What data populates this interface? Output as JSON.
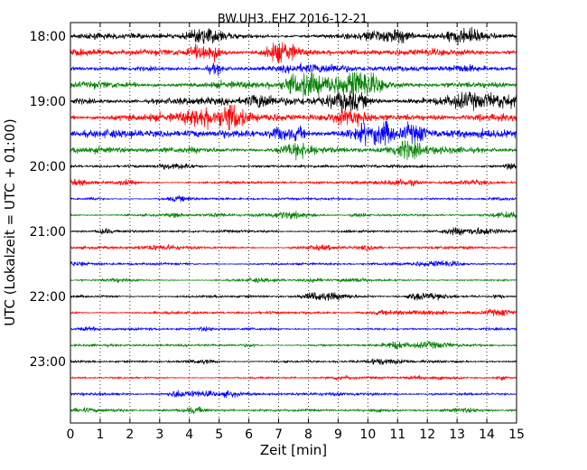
{
  "chart_data": {
    "type": "line",
    "title": "BW.UH3..EHZ 2016-12-21",
    "xlabel": "Zeit  [min]",
    "ylabel": "UTC (Lokalzeit = UTC + 01:00)",
    "xlim": [
      0,
      15
    ],
    "x_ticks": [
      "0",
      "1",
      "2",
      "3",
      "4",
      "5",
      "6",
      "7",
      "8",
      "9",
      "10",
      "11",
      "12",
      "13",
      "14",
      "15"
    ],
    "y_tick_labels": [
      "18:00",
      "19:00",
      "20:00",
      "21:00",
      "22:00",
      "23:00"
    ],
    "grid": "vertical dotted",
    "colors": [
      "#000000",
      "#ff0000",
      "#0000ff",
      "#008000"
    ],
    "series": [
      {
        "start": "18:00",
        "color": "#000000",
        "amplitude": 0.4
      },
      {
        "start": "18:15",
        "color": "#ff0000",
        "amplitude": 0.45
      },
      {
        "start": "18:30",
        "color": "#0000ff",
        "amplitude": 0.35
      },
      {
        "start": "18:45",
        "color": "#008000",
        "amplitude": 0.55
      },
      {
        "start": "19:00",
        "color": "#000000",
        "amplitude": 0.55
      },
      {
        "start": "19:15",
        "color": "#ff0000",
        "amplitude": 0.55
      },
      {
        "start": "19:30",
        "color": "#0000ff",
        "amplitude": 0.55
      },
      {
        "start": "19:45",
        "color": "#008000",
        "amplitude": 0.45
      },
      {
        "start": "20:00",
        "color": "#000000",
        "amplitude": 0.2
      },
      {
        "start": "20:15",
        "color": "#ff0000",
        "amplitude": 0.2
      },
      {
        "start": "20:30",
        "color": "#0000ff",
        "amplitude": 0.16
      },
      {
        "start": "20:45",
        "color": "#008000",
        "amplitude": 0.18
      },
      {
        "start": "21:00",
        "color": "#000000",
        "amplitude": 0.18
      },
      {
        "start": "21:15",
        "color": "#ff0000",
        "amplitude": 0.18
      },
      {
        "start": "21:30",
        "color": "#0000ff",
        "amplitude": 0.18
      },
      {
        "start": "21:45",
        "color": "#008000",
        "amplitude": 0.14
      },
      {
        "start": "22:00",
        "color": "#000000",
        "amplitude": 0.18
      },
      {
        "start": "22:15",
        "color": "#ff0000",
        "amplitude": 0.18
      },
      {
        "start": "22:30",
        "color": "#0000ff",
        "amplitude": 0.16
      },
      {
        "start": "22:45",
        "color": "#008000",
        "amplitude": 0.16
      },
      {
        "start": "23:00",
        "color": "#000000",
        "amplitude": 0.16
      },
      {
        "start": "23:15",
        "color": "#ff0000",
        "amplitude": 0.14
      },
      {
        "start": "23:30",
        "color": "#0000ff",
        "amplitude": 0.22
      },
      {
        "start": "23:45",
        "color": "#008000",
        "amplitude": 0.16
      }
    ]
  }
}
